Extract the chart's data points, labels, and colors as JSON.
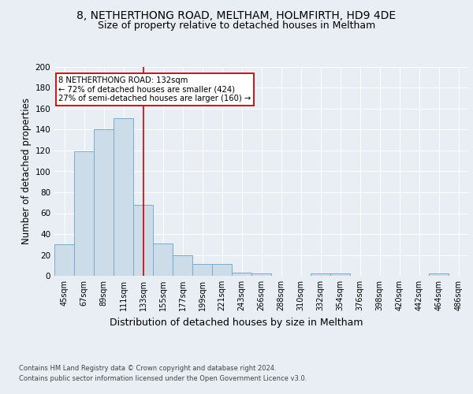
{
  "title": "8, NETHERTHONG ROAD, MELTHAM, HOLMFIRTH, HD9 4DE",
  "subtitle": "Size of property relative to detached houses in Meltham",
  "xlabel": "Distribution of detached houses by size in Meltham",
  "ylabel": "Number of detached properties",
  "footnote1": "Contains HM Land Registry data © Crown copyright and database right 2024.",
  "footnote2": "Contains public sector information licensed under the Open Government Licence v3.0.",
  "categories": [
    "45sqm",
    "67sqm",
    "89sqm",
    "111sqm",
    "133sqm",
    "155sqm",
    "177sqm",
    "199sqm",
    "221sqm",
    "243sqm",
    "266sqm",
    "288sqm",
    "310sqm",
    "332sqm",
    "354sqm",
    "376sqm",
    "398sqm",
    "420sqm",
    "442sqm",
    "464sqm",
    "486sqm"
  ],
  "values": [
    30,
    119,
    140,
    151,
    68,
    31,
    20,
    11,
    11,
    3,
    2,
    0,
    0,
    2,
    2,
    0,
    0,
    0,
    0,
    2,
    0
  ],
  "bar_color": "#ccdce8",
  "bar_edge_color": "#7aabcc",
  "highlight_index": 4,
  "highlight_line_color": "#cc0000",
  "annotation_box_color": "#ffffff",
  "annotation_border_color": "#cc0000",
  "annotation_text_line1": "8 NETHERTHONG ROAD: 132sqm",
  "annotation_text_line2": "← 72% of detached houses are smaller (424)",
  "annotation_text_line3": "27% of semi-detached houses are larger (160) →",
  "ylim": [
    0,
    200
  ],
  "yticks": [
    0,
    20,
    40,
    60,
    80,
    100,
    120,
    140,
    160,
    180,
    200
  ],
  "bg_color": "#e8eef4",
  "plot_bg_color": "#e8eef4",
  "title_fontsize": 10,
  "subtitle_fontsize": 9,
  "xlabel_fontsize": 9,
  "ylabel_fontsize": 8.5
}
